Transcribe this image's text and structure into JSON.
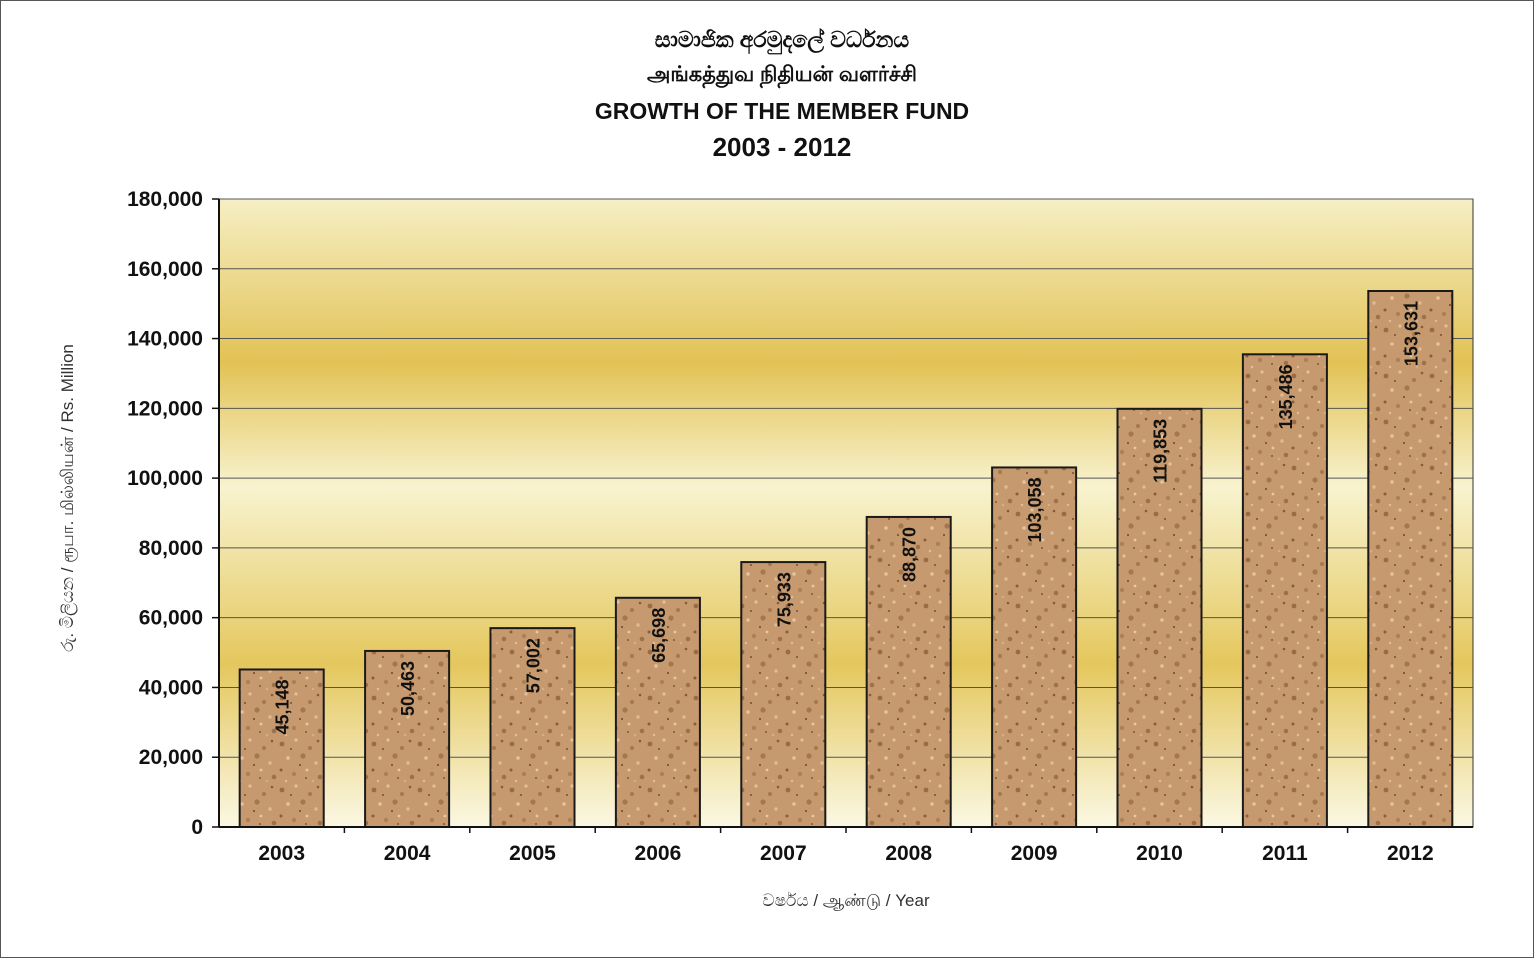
{
  "chart_data": {
    "type": "bar",
    "title_lines": [
      "සාමාජික අරමුදලේ වර්ධනය",
      "அங்கத்துவ நிதியன் வளர்ச்சி",
      "GROWTH OF THE MEMBER FUND",
      "2003 - 2012"
    ],
    "xlabel": "වර්ෂය / ஆண்டு / Year",
    "ylabel": "රු. මිලියන / ரூபா. மில்லியன் / Rs. Million",
    "categories": [
      "2003",
      "2004",
      "2005",
      "2006",
      "2007",
      "2008",
      "2009",
      "2010",
      "2011",
      "2012"
    ],
    "values": [
      45148,
      50463,
      57002,
      65698,
      75933,
      88870,
      103058,
      119853,
      135486,
      153631
    ],
    "data_labels": [
      "45,148",
      "50,463",
      "57,002",
      "65,698",
      "75,933",
      "88,870",
      "103,058",
      "119,853",
      "135,486",
      "153,631"
    ],
    "ylim": [
      0,
      180000
    ],
    "yticks": [
      0,
      20000,
      40000,
      60000,
      80000,
      100000,
      120000,
      140000,
      160000,
      180000
    ],
    "ytick_labels": [
      "0",
      "20,000",
      "40,000",
      "60,000",
      "80,000",
      "100,000",
      "120,000",
      "140,000",
      "160,000",
      "180,000"
    ],
    "grid": true,
    "legend": "none",
    "colors": {
      "bar_fill": "#c4956a",
      "bar_speckle_dark": "#8a5a35",
      "bar_speckle_light": "#e3c29a",
      "bar_outline": "#1a1a1a",
      "plot_bg_light": "#f8f3c8",
      "plot_bg_band": "#e3c65c",
      "gridline": "#555555",
      "axis": "#111111"
    }
  }
}
